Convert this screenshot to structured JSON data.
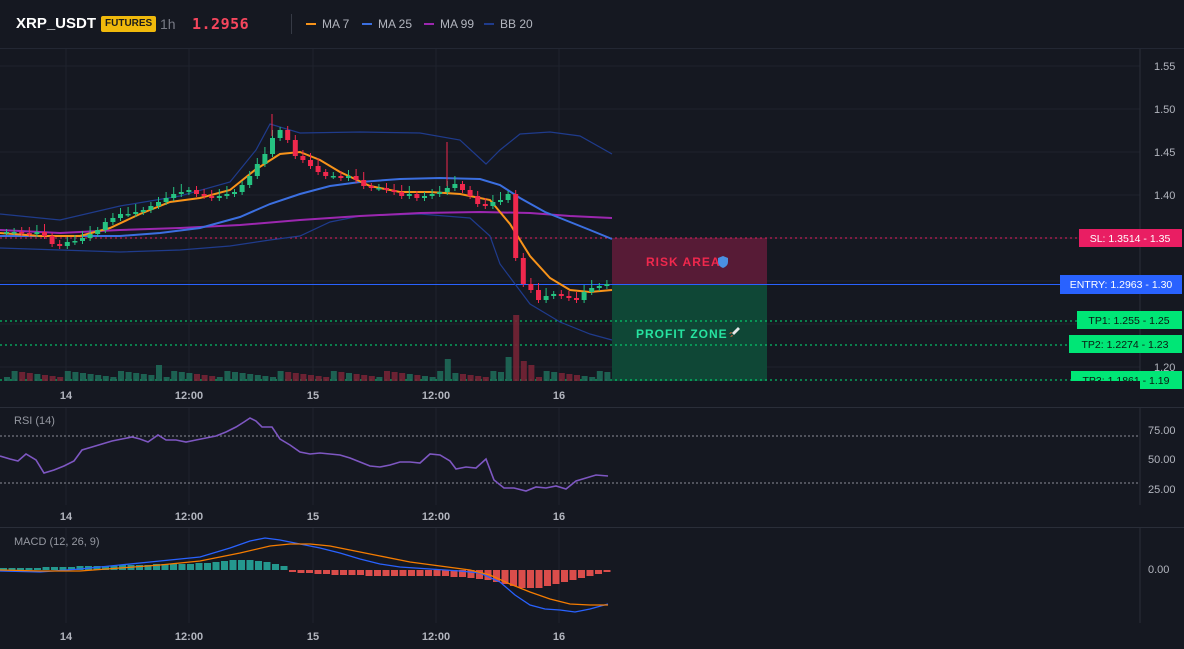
{
  "header": {
    "symbol": "XRP_USDT",
    "badge": "FUTURES",
    "timeframe": "1h",
    "last_price": "1.2956",
    "indicators": [
      {
        "label": "MA 7",
        "color": "#f7931a"
      },
      {
        "label": "MA 25",
        "color": "#3b6fe0"
      },
      {
        "label": "MA 99",
        "color": "#9c27b0"
      },
      {
        "label": "BB 20",
        "color": "#1f3b8c"
      }
    ]
  },
  "main_pane": {
    "price_axis_labels": [
      "1.55",
      "1.50",
      "1.45",
      "1.40",
      "1.35",
      "1.30",
      "1.25",
      "1.23",
      "1.20",
      "1.19"
    ],
    "time_axis_labels": [
      "14",
      "12:00",
      "15",
      "12:00",
      "16"
    ],
    "zones": {
      "risk_label": "RISK AREA",
      "profit_label": "PROFIT ZONE"
    },
    "level_tags": {
      "sl": "SL: 1.3514 - 1.35",
      "entry": "ENTRY: 1.2963 - 1.30",
      "tp1": "TP1: 1.255 - 1.25",
      "tp2": "TP2: 1.2274 - 1.23",
      "tp3": "TP3: 1.1861 - 1.19"
    },
    "colors": {
      "up": "#26c281",
      "down": "#f0284d",
      "sl": "#e91e63",
      "entry": "#2962ff",
      "tp": "#00e676"
    }
  },
  "rsi_pane": {
    "title": "RSI (14)",
    "axis_labels": [
      "75.00",
      "50.00",
      "25.00"
    ],
    "time_axis_labels": [
      "14",
      "12:00",
      "15",
      "12:00",
      "16"
    ]
  },
  "macd_pane": {
    "title": "MACD (12, 26, 9)",
    "axis_labels": [
      "0.00"
    ],
    "time_axis_labels": [
      "14",
      "12:00",
      "15",
      "12:00",
      "16"
    ]
  }
}
